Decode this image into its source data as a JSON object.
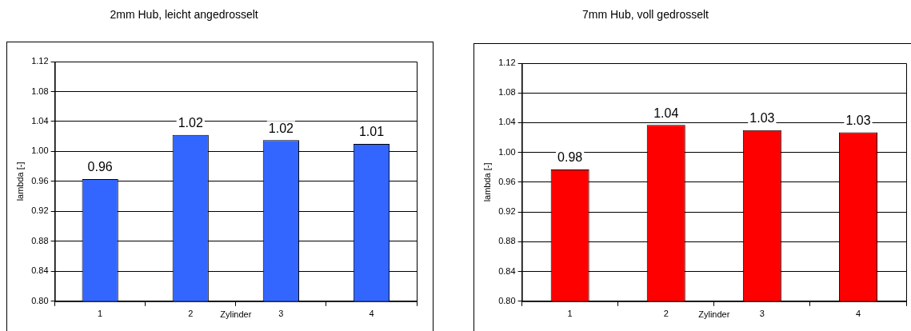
{
  "chart_data": [
    {
      "type": "bar",
      "title": "2mm Hub, leicht angedrosselt",
      "xlabel": "Zylinder",
      "ylabel": "lambda [-]",
      "categories": [
        "1",
        "2",
        "3",
        "4"
      ],
      "values": [
        0.963,
        1.022,
        1.015,
        1.01
      ],
      "value_labels": [
        "0.96",
        "1.02",
        "1.02",
        "1.01"
      ],
      "color": "#3366ff",
      "ylim": [
        0.8,
        1.12
      ],
      "yticks": [
        {
          "value": 0.8,
          "label": "0.80"
        },
        {
          "value": 0.84,
          "label": "0.84"
        },
        {
          "value": 0.88,
          "label": "0.88"
        },
        {
          "value": 0.92,
          "label": "0.92"
        },
        {
          "value": 0.96,
          "label": "0.96"
        },
        {
          "value": 1.0,
          "label": "1.00"
        },
        {
          "value": 1.04,
          "label": "1.04"
        },
        {
          "value": 1.08,
          "label": "1.08"
        },
        {
          "value": 1.12,
          "label": "1.12"
        }
      ],
      "grid": "y",
      "legend": false
    },
    {
      "type": "bar",
      "title": "7mm Hub, voll gedrosselt",
      "xlabel": "Zylinder",
      "ylabel": "lambda [-]",
      "categories": [
        "1",
        "2",
        "3",
        "4"
      ],
      "values": [
        0.977,
        1.037,
        1.03,
        1.027
      ],
      "value_labels": [
        "0.98",
        "1.04",
        "1.03",
        "1.03"
      ],
      "color": "#ff0000",
      "ylim": [
        0.8,
        1.12
      ],
      "yticks": [
        {
          "value": 0.8,
          "label": "0.80"
        },
        {
          "value": 0.84,
          "label": "0.84"
        },
        {
          "value": 0.88,
          "label": "0.88"
        },
        {
          "value": 0.92,
          "label": "0.92"
        },
        {
          "value": 0.96,
          "label": "0.96"
        },
        {
          "value": 1.0,
          "label": "1.00"
        },
        {
          "value": 1.04,
          "label": "1.04"
        },
        {
          "value": 1.08,
          "label": "1.08"
        },
        {
          "value": 1.12,
          "label": "1.12"
        }
      ],
      "grid": "y",
      "legend": false
    }
  ]
}
